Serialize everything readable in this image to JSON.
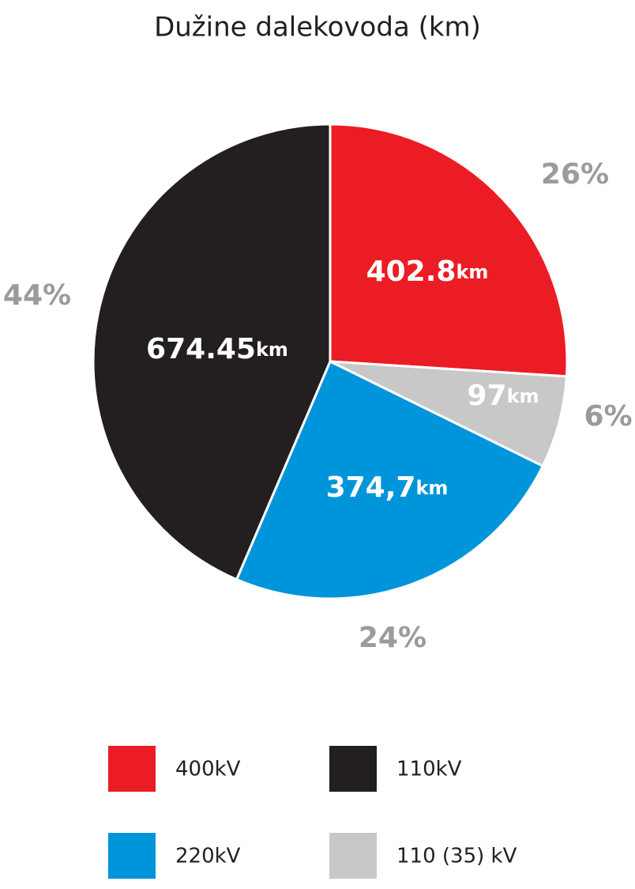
{
  "chart_data": {
    "type": "pie",
    "title": "Dužine dalekovoda (km)",
    "categories": [
      "400kV",
      "110 (35) kV",
      "220kV",
      "110kV"
    ],
    "values": [
      402.8,
      97,
      374.7,
      674.45
    ],
    "value_labels": [
      "402.8km",
      "97km",
      "374,7km",
      "674.45km"
    ],
    "percentages": [
      26,
      6,
      24,
      44
    ],
    "percentage_labels": [
      "26%",
      "6%",
      "24%",
      "44%"
    ],
    "colors": [
      "#ec1c24",
      "#c8c8c8",
      "#0095da",
      "#231f20"
    ]
  }
}
